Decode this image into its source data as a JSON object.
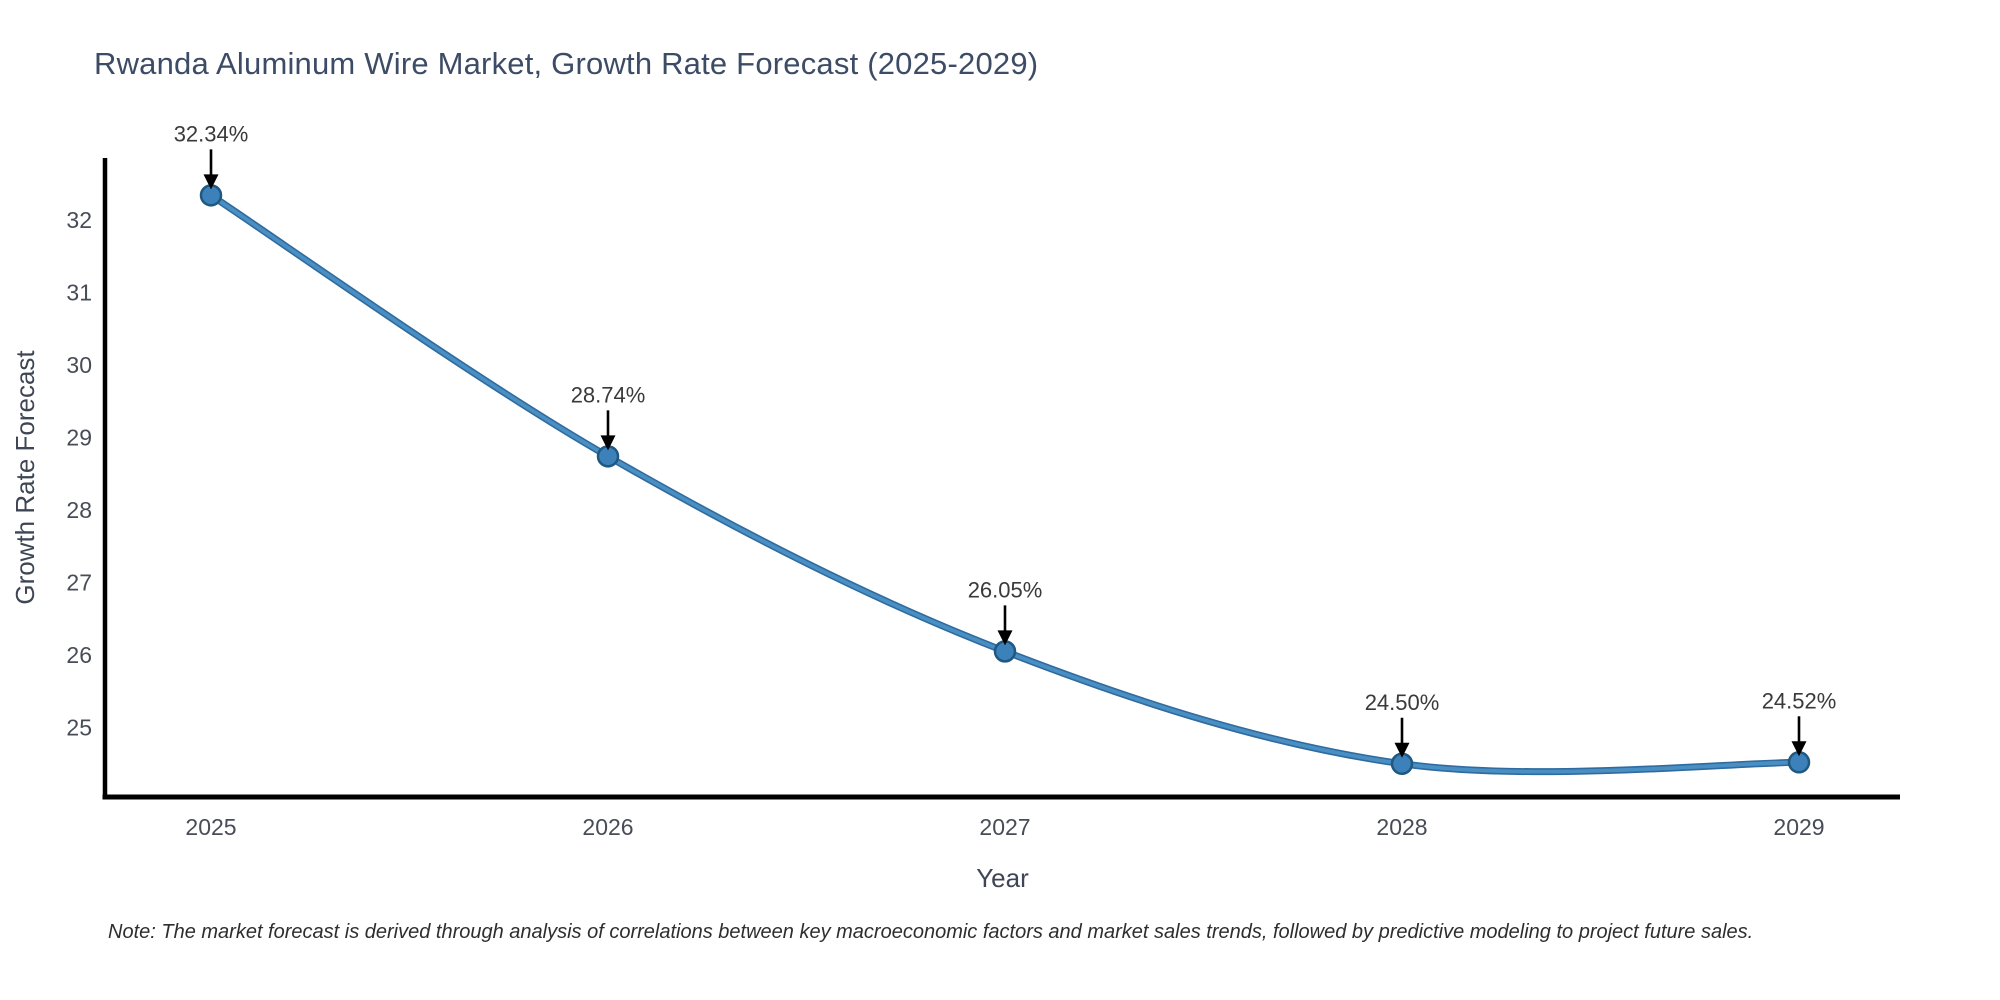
{
  "chart_data": {
    "type": "line",
    "title": "Rwanda Aluminum Wire Market, Growth Rate Forecast (2025-2029)",
    "xlabel": "Year",
    "ylabel": "Growth Rate Forecast",
    "categories": [
      "2025",
      "2026",
      "2027",
      "2028",
      "2029"
    ],
    "series": [
      {
        "name": "Growth Rate Forecast",
        "values": [
          32.34,
          28.74,
          26.05,
          24.5,
          24.52
        ]
      }
    ],
    "point_labels": [
      "32.34%",
      "28.74%",
      "26.05%",
      "24.50%",
      "24.52%"
    ],
    "yticks": [
      25,
      26,
      27,
      28,
      29,
      30,
      31,
      32
    ],
    "ylim": [
      24.0,
      32.9
    ],
    "grid": false,
    "legend_position": "none",
    "curve": "smooth-spline",
    "annotation_style": "value labels above points with downward black arrows",
    "colors": {
      "line": "#4A8FC4",
      "line_edge": "#2F6B9E",
      "marker": "#3D81BA",
      "marker_edge": "#1F5880",
      "arrow": "#000000",
      "axis": "#000000",
      "tick_text": "#474C57",
      "axis_label_text": "#3E4655",
      "title_text": "#3D4C66"
    }
  },
  "footer": {
    "note": "Note: The market forecast is derived through analysis of correlations between key macroeconomic factors and market sales trends, followed by predictive modeling to project future sales."
  }
}
